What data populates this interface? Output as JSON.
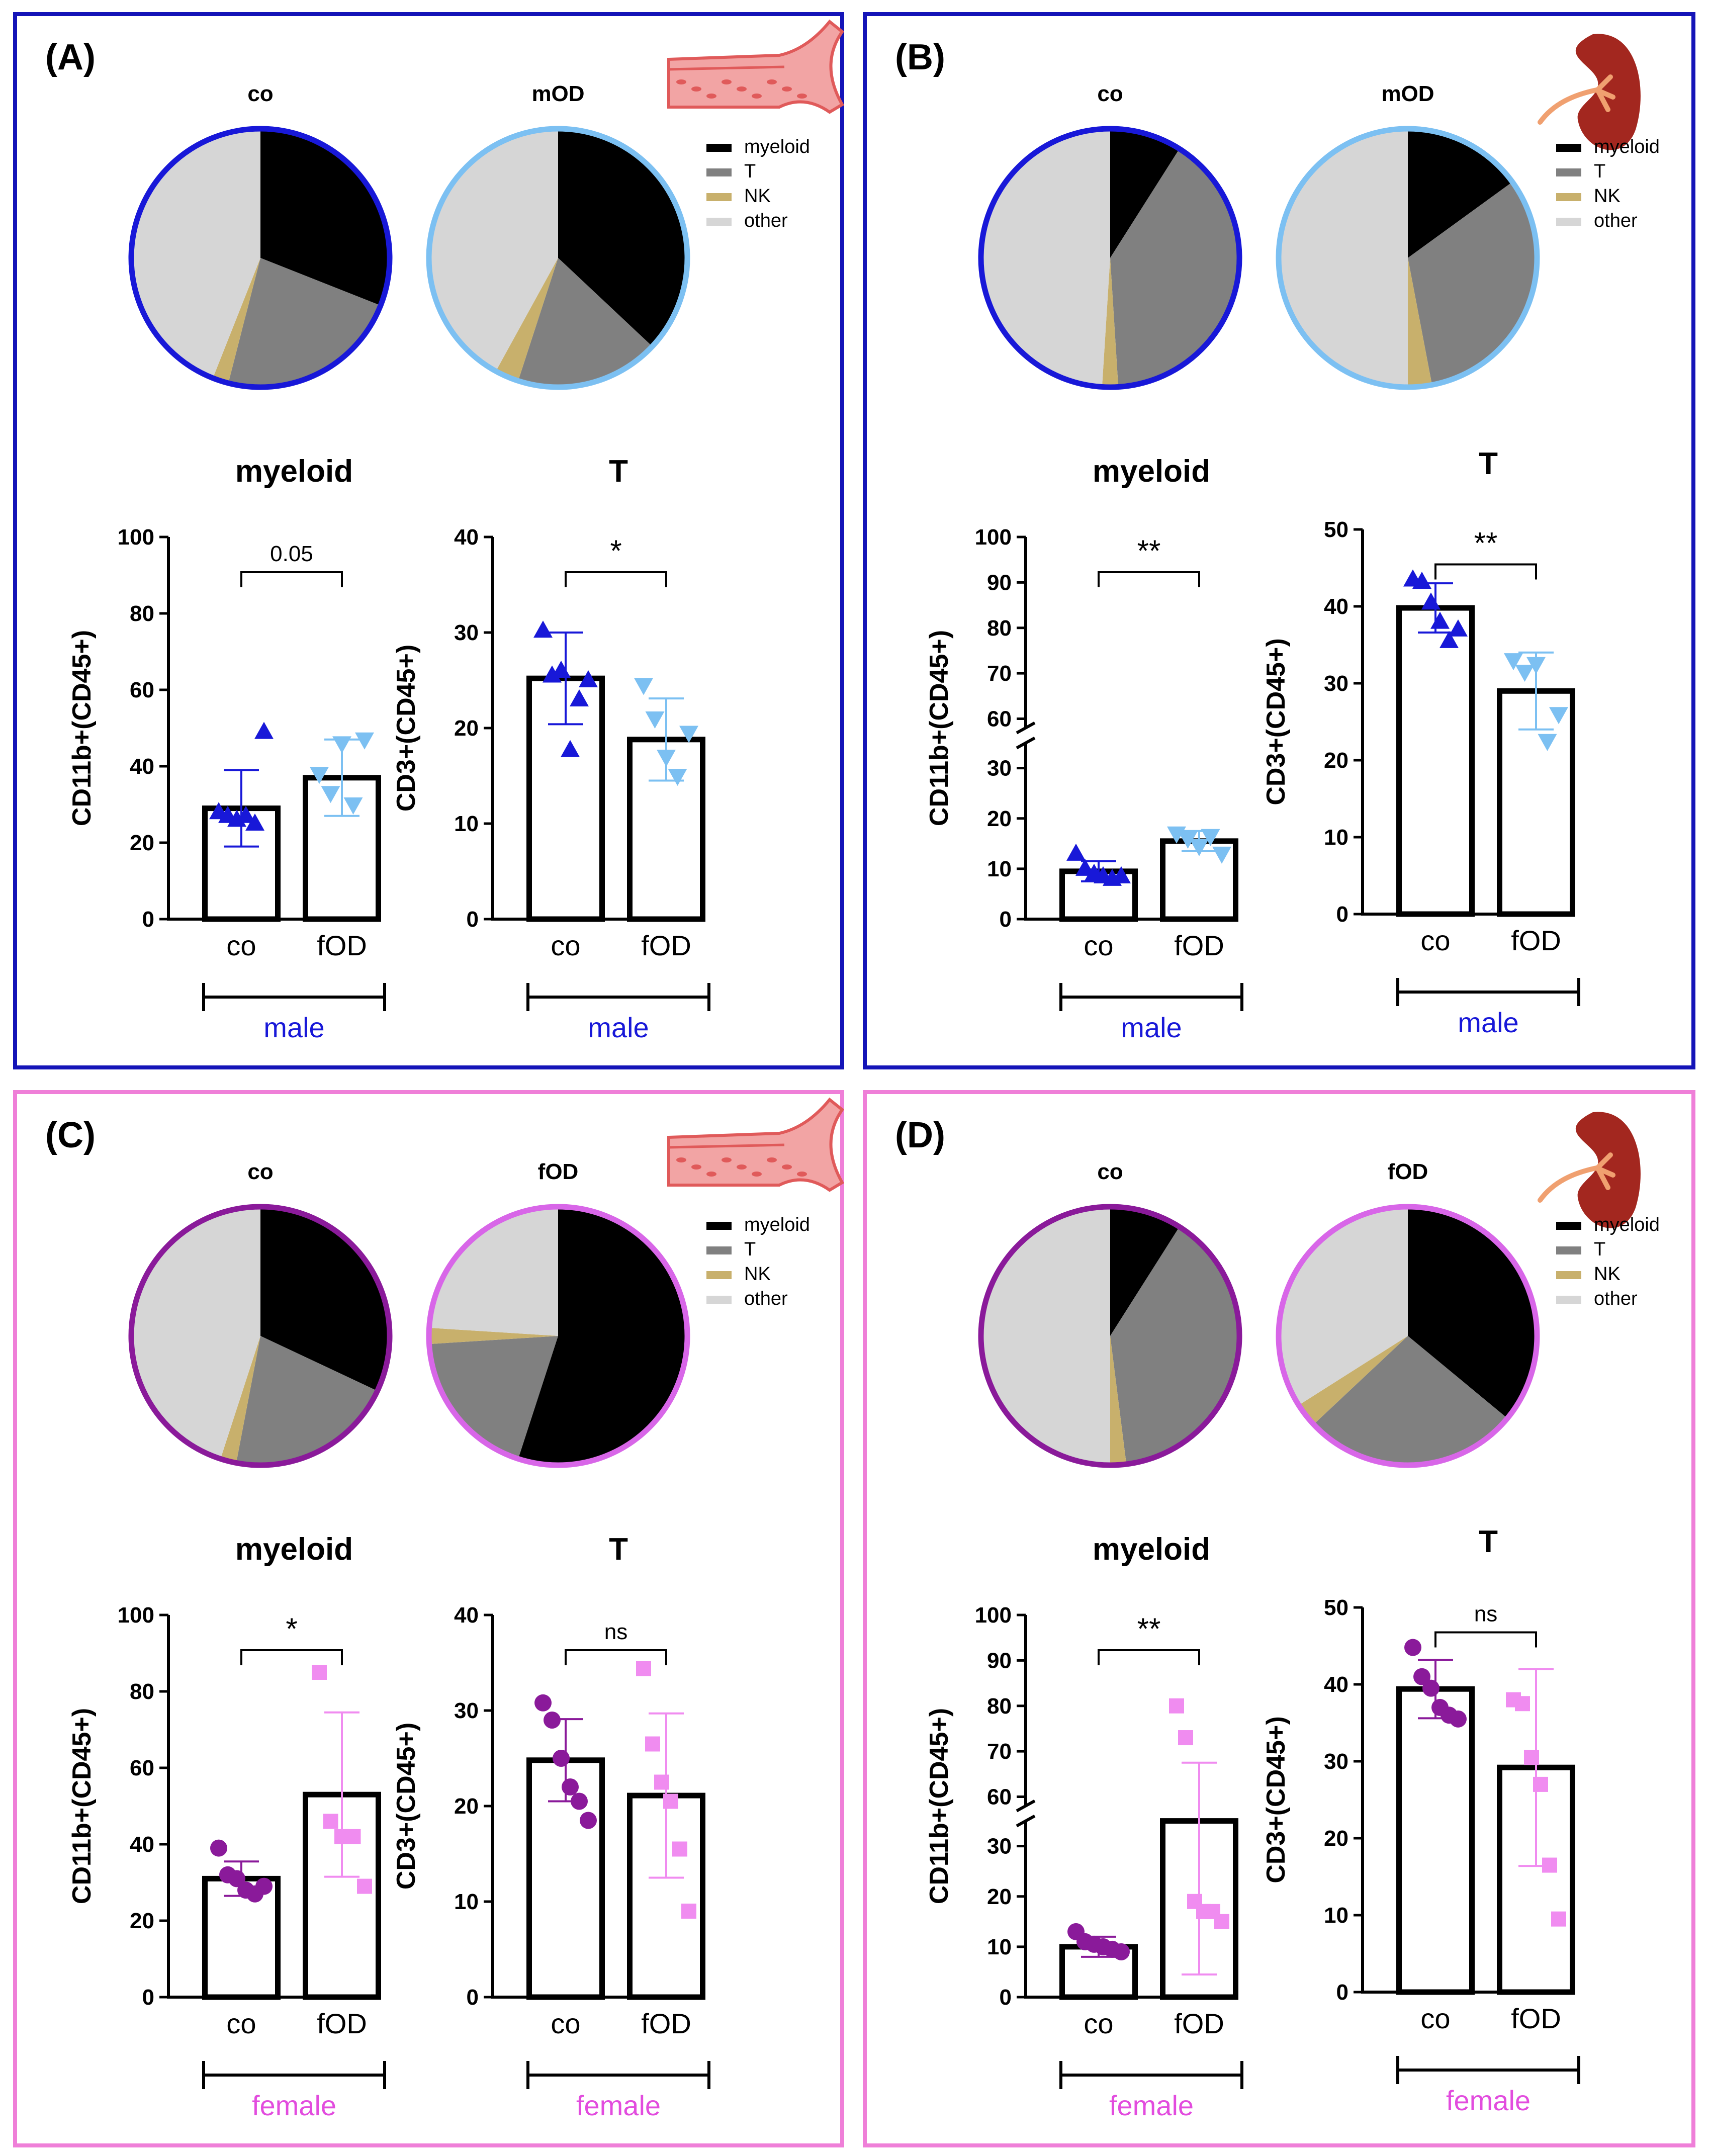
{
  "colors": {
    "male_frame": "#1414b8",
    "female_frame": "#ef7fd8",
    "male_co": "#1818d8",
    "male_od": "#7cc0f2",
    "female_co": "#8a1a9a",
    "female_od": "#f08cf0",
    "female_od_ring": "#d866e8",
    "myeloid": "#000000",
    "T": "#808080",
    "NK": "#c8b06c",
    "other": "#d6d6d6",
    "tissue": "#e05a5a",
    "tissue_light": "#f2a4a4"
  },
  "legend": {
    "items": [
      "myeloid",
      "T",
      "NK",
      "other"
    ]
  },
  "chart_data": [
    {
      "panel": "(A)",
      "icon": "blood-vessel-icon",
      "sex": "male",
      "pies": [
        {
          "label": "co",
          "type": "pie",
          "slices": {
            "myeloid": 31,
            "T": 23,
            "NK": 2,
            "other": 44
          }
        },
        {
          "label": "mOD",
          "type": "pie",
          "slices": {
            "myeloid": 37,
            "T": 18,
            "NK": 3,
            "other": 42
          }
        }
      ],
      "bars": [
        {
          "type": "bar",
          "title": "myeloid",
          "ylabel": "CD11b+(CD45+)",
          "categories": [
            "co",
            "fOD"
          ],
          "group_label": "male",
          "ylim": [
            0,
            100
          ],
          "ticks": [
            0,
            20,
            40,
            60,
            80,
            100
          ],
          "broken": null,
          "values": [
            29,
            37
          ],
          "errors": [
            10,
            10
          ],
          "sig": "0.05",
          "points": [
            [
              28,
              27,
              26,
              27,
              25,
              49
            ],
            [
              38,
              33,
              46,
              30,
              47
            ]
          ]
        },
        {
          "type": "bar",
          "title": "T",
          "ylabel": "CD3+(CD45+)",
          "categories": [
            "co",
            "fOD"
          ],
          "group_label": "male",
          "ylim": [
            0,
            40
          ],
          "ticks": [
            0,
            10,
            20,
            30,
            40
          ],
          "broken": null,
          "values": [
            25.2,
            18.8
          ],
          "errors": [
            4.8,
            4.3
          ],
          "sig": "*",
          "points": [
            [
              30.2,
              25.5,
              26,
              17.7,
              23,
              25
            ],
            [
              24.5,
              21,
              17,
              15,
              19.5
            ]
          ]
        }
      ]
    },
    {
      "panel": "(B)",
      "icon": "kidney-icon",
      "sex": "male",
      "pies": [
        {
          "label": "co",
          "type": "pie",
          "slices": {
            "myeloid": 9,
            "T": 40,
            "NK": 2,
            "other": 49
          }
        },
        {
          "label": "mOD",
          "type": "pie",
          "slices": {
            "myeloid": 15,
            "T": 32,
            "NK": 3,
            "other": 50
          }
        }
      ],
      "bars": [
        {
          "type": "bar",
          "title": "myeloid",
          "ylabel": "CD11b+(CD45+)",
          "categories": [
            "co",
            "fOD"
          ],
          "group_label": "male",
          "ylim": [
            0,
            100
          ],
          "ticks": [
            0,
            10,
            20,
            30,
            60,
            70,
            80,
            90,
            100
          ],
          "broken": [
            35,
            58
          ],
          "values": [
            9.5,
            15.5
          ],
          "errors": [
            2,
            2
          ],
          "sig": "**",
          "points": [
            [
              13,
              10,
              9,
              8.5,
              8,
              8.5
            ],
            [
              17,
              16,
              14.5,
              16.5,
              13
            ]
          ]
        },
        {
          "type": "bar",
          "title": "T",
          "ylabel": "CD3+(CD45+)",
          "categories": [
            "co",
            "fOD"
          ],
          "group_label": "male",
          "ylim": [
            0,
            50
          ],
          "ticks": [
            0,
            10,
            20,
            30,
            40,
            50
          ],
          "broken": null,
          "values": [
            39.8,
            29
          ],
          "errors": [
            3.2,
            5
          ],
          "sig": "**",
          "points": [
            [
              43.5,
              43.2,
              40.5,
              38,
              35.5,
              37
            ],
            [
              33,
              31.5,
              32.5,
              22.5,
              26
            ]
          ]
        }
      ]
    },
    {
      "panel": "(C)",
      "icon": "blood-vessel-icon",
      "sex": "female",
      "pies": [
        {
          "label": "co",
          "type": "pie",
          "slices": {
            "myeloid": 32,
            "T": 21,
            "NK": 2,
            "other": 45
          }
        },
        {
          "label": "fOD",
          "type": "pie",
          "slices": {
            "myeloid": 55,
            "T": 19,
            "NK": 2,
            "other": 24
          }
        }
      ],
      "bars": [
        {
          "type": "bar",
          "title": "myeloid",
          "ylabel": "CD11b+(CD45+)",
          "categories": [
            "co",
            "fOD"
          ],
          "group_label": "female",
          "ylim": [
            0,
            100
          ],
          "ticks": [
            0,
            20,
            40,
            60,
            80,
            100
          ],
          "broken": null,
          "values": [
            31,
            53
          ],
          "errors": [
            4.5,
            21.5
          ],
          "sig": "*",
          "points": [
            [
              39,
              32,
              31,
              28,
              27,
              29
            ],
            [
              85,
              46,
              42,
              42,
              29
            ]
          ]
        },
        {
          "type": "bar",
          "title": "T",
          "ylabel": "CD3+(CD45+)",
          "categories": [
            "co",
            "fOD"
          ],
          "group_label": "female",
          "ylim": [
            0,
            40
          ],
          "ticks": [
            0,
            10,
            20,
            30,
            40
          ],
          "broken": null,
          "values": [
            24.8,
            21.1
          ],
          "errors": [
            4.3,
            8.6
          ],
          "sig": "ns",
          "points": [
            [
              30.8,
              29,
              25,
              22,
              20.5,
              18.5
            ],
            [
              34.4,
              26.5,
              22.5,
              20.5,
              15.5,
              9
            ]
          ]
        }
      ]
    },
    {
      "panel": "(D)",
      "icon": "kidney-icon",
      "sex": "female",
      "pies": [
        {
          "label": "co",
          "type": "pie",
          "slices": {
            "myeloid": 9,
            "T": 39,
            "NK": 2,
            "other": 50
          }
        },
        {
          "label": "fOD",
          "type": "pie",
          "slices": {
            "myeloid": 36,
            "T": 27,
            "NK": 3,
            "other": 34
          }
        }
      ],
      "bars": [
        {
          "type": "bar",
          "title": "myeloid",
          "ylabel": "CD11b+(CD45+)",
          "categories": [
            "co",
            "fOD"
          ],
          "group_label": "female",
          "ylim": [
            0,
            100
          ],
          "ticks": [
            0,
            10,
            20,
            30,
            60,
            70,
            80,
            90,
            100
          ],
          "broken": [
            35,
            58
          ],
          "values": [
            10,
            36
          ],
          "errors": [
            2,
            31.5
          ],
          "sig": "**",
          "points": [
            [
              13,
              11,
              10.5,
              10,
              9.5,
              9
            ],
            [
              80,
              73,
              19,
              17,
              17,
              15
            ]
          ]
        },
        {
          "type": "bar",
          "title": "T",
          "ylabel": "CD3+(CD45+)",
          "categories": [
            "co",
            "fOD"
          ],
          "group_label": "female",
          "ylim": [
            0,
            50
          ],
          "ticks": [
            0,
            10,
            20,
            30,
            40,
            50
          ],
          "broken": null,
          "values": [
            39.4,
            29.2
          ],
          "errors": [
            3.8,
            12.8
          ],
          "sig": "ns",
          "points": [
            [
              44.8,
              41,
              39.5,
              37,
              36,
              35.5
            ],
            [
              38,
              37.5,
              30.5,
              27,
              16.5,
              9.5
            ]
          ]
        }
      ]
    }
  ]
}
